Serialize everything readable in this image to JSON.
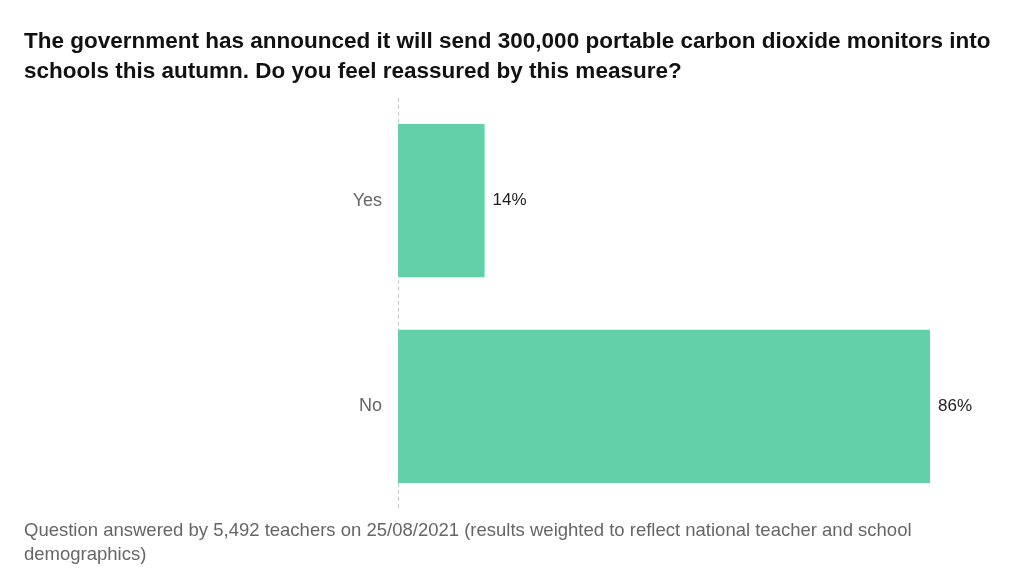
{
  "chart_data": {
    "type": "bar",
    "orientation": "horizontal",
    "title": "The government has announced it will send 300,000 portable carbon dioxide monitors into schools this autumn. Do you feel reassured by this measure?",
    "categories": [
      "Yes",
      "No"
    ],
    "values": [
      14,
      86
    ],
    "color": "#64d0aa",
    "value_labels": [
      "14%",
      "86%"
    ],
    "annotations": [
      "Question answered by 5,492 teachers on 25/08/2021 (results weighted to reflect national teacher and school demographics)"
    ]
  }
}
